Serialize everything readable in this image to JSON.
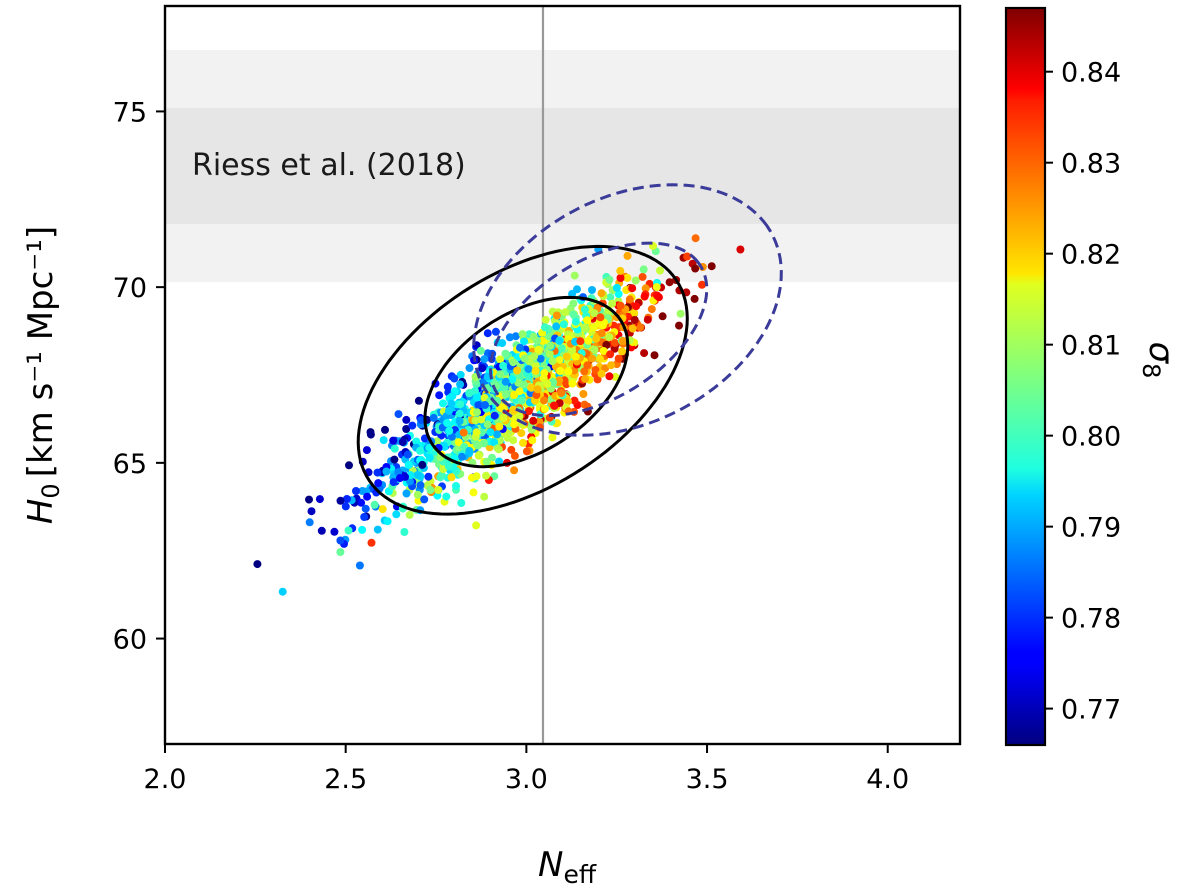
{
  "chart_data": {
    "type": "scatter",
    "xlim": [
      2.0,
      4.2
    ],
    "ylim": [
      57,
      78
    ],
    "xticks": [
      "2.0",
      "2.5",
      "3.0",
      "3.5",
      "4.0"
    ],
    "yticks": [
      "60",
      "65",
      "70",
      "75"
    ],
    "xlabel": "N",
    "xlabel_sub": "eff",
    "ylabel": "H",
    "ylabel_sub": "0",
    "ylabel_units": "[km s⁻¹ Mpc⁻¹]",
    "colorbar": {
      "label": "σ",
      "label_sub": "8",
      "range": [
        0.766,
        0.847
      ],
      "ticks": [
        "0.77",
        "0.78",
        "0.79",
        "0.80",
        "0.81",
        "0.82",
        "0.83",
        "0.84"
      ],
      "colormap": "jet"
    },
    "reference_band": {
      "label": "Riess et al. (2018)",
      "center": 73.45,
      "inner": [
        71.8,
        75.1
      ],
      "outer": [
        70.15,
        76.75
      ],
      "inner_color": "#e6e6e6",
      "outer_color": "#f2f2f2"
    },
    "vertical_line": {
      "x": 3.046,
      "color": "#999999"
    },
    "contours": [
      {
        "style": "solid",
        "color": "#000000",
        "level": "68%",
        "cx": 3.0,
        "cy": 67.3,
        "a": 0.32,
        "b": 0.2,
        "angle_deg": 38
      },
      {
        "style": "solid",
        "color": "#000000",
        "level": "95%",
        "cx": 2.99,
        "cy": 67.35,
        "a": 0.52,
        "b": 0.31,
        "angle_deg": 37
      },
      {
        "style": "dashed",
        "color": "#3b3b99",
        "level": "68%",
        "cx": 3.2,
        "cy": 68.8,
        "a": 0.34,
        "b": 0.2,
        "angle_deg": 36
      },
      {
        "style": "dashed",
        "color": "#3b3b99",
        "level": "95%",
        "cx": 3.28,
        "cy": 69.35,
        "a": 0.46,
        "b": 0.33,
        "angle_deg": 33
      }
    ],
    "samples": {
      "count": 1500,
      "center": [
        2.97,
        67.0
      ],
      "sigma_n": 0.19,
      "h0_slope": 7.0,
      "h0_scatter": 0.75,
      "sigma8_mean": 0.806,
      "sigma8_per_neff": 0.06,
      "sigma8_per_h0_resid": -0.008,
      "sigma8_scatter": 0.011
    }
  }
}
